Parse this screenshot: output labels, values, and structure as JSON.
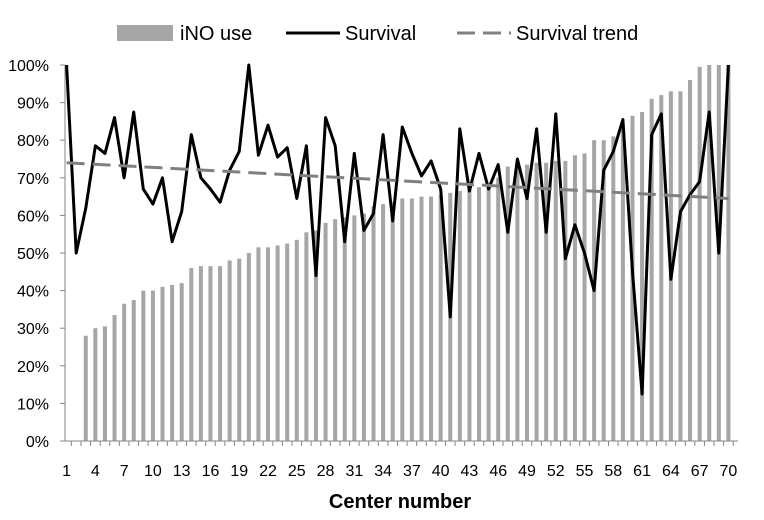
{
  "chart_data": {
    "type": "bar",
    "xlabel": "Center number",
    "ylabel": "",
    "ylim": [
      0,
      1
    ],
    "yticks": [
      "0%",
      "10%",
      "20%",
      "30%",
      "40%",
      "50%",
      "60%",
      "70%",
      "80%",
      "90%",
      "100%"
    ],
    "xtick_labels": [
      "1",
      "4",
      "7",
      "10",
      "13",
      "16",
      "19",
      "22",
      "25",
      "28",
      "31",
      "34",
      "37",
      "40",
      "43",
      "46",
      "49",
      "52",
      "55",
      "58",
      "61",
      "64",
      "67",
      "70"
    ],
    "categories": [
      1,
      2,
      3,
      4,
      5,
      6,
      7,
      8,
      9,
      10,
      11,
      12,
      13,
      14,
      15,
      16,
      17,
      18,
      19,
      20,
      21,
      22,
      23,
      24,
      25,
      26,
      27,
      28,
      29,
      30,
      31,
      32,
      33,
      34,
      35,
      36,
      37,
      38,
      39,
      40,
      41,
      42,
      43,
      44,
      45,
      46,
      47,
      48,
      49,
      50,
      51,
      52,
      53,
      54,
      55,
      56,
      57,
      58,
      59,
      60,
      61,
      62,
      63,
      64,
      65,
      66,
      67,
      68,
      69,
      70
    ],
    "legend": {
      "position": "top",
      "items": [
        "iNO use",
        "Survival",
        "Survival trend"
      ]
    },
    "series": [
      {
        "name": "iNO use",
        "type": "bar",
        "color": "#a6a6a6",
        "values": [
          0,
          0,
          0.28,
          0.3,
          0.305,
          0.335,
          0.365,
          0.375,
          0.4,
          0.4,
          0.41,
          0.415,
          0.42,
          0.46,
          0.465,
          0.465,
          0.465,
          0.48,
          0.485,
          0.5,
          0.515,
          0.515,
          0.52,
          0.525,
          0.535,
          0.555,
          0.56,
          0.58,
          0.59,
          0.595,
          0.6,
          0.605,
          0.625,
          0.63,
          0.635,
          0.645,
          0.645,
          0.65,
          0.65,
          0.655,
          0.66,
          0.665,
          0.67,
          0.675,
          0.68,
          0.7,
          0.73,
          0.735,
          0.735,
          0.74,
          0.74,
          0.745,
          0.745,
          0.76,
          0.765,
          0.8,
          0.8,
          0.81,
          0.83,
          0.865,
          0.875,
          0.91,
          0.92,
          0.93,
          0.93,
          0.96,
          0.995,
          1.0,
          1.0,
          1.0
        ]
      },
      {
        "name": "Survival",
        "type": "line",
        "color": "#000000",
        "values": [
          1.0,
          0.5,
          0.62,
          0.785,
          0.765,
          0.86,
          0.7,
          0.875,
          0.67,
          0.63,
          0.7,
          0.53,
          0.61,
          0.815,
          0.7,
          0.67,
          0.635,
          0.72,
          0.77,
          1.0,
          0.76,
          0.84,
          0.755,
          0.78,
          0.645,
          0.785,
          0.44,
          0.86,
          0.785,
          0.53,
          0.765,
          0.56,
          0.605,
          0.815,
          0.585,
          0.835,
          0.765,
          0.705,
          0.745,
          0.67,
          0.33,
          0.83,
          0.665,
          0.765,
          0.67,
          0.735,
          0.555,
          0.75,
          0.645,
          0.83,
          0.555,
          0.87,
          0.485,
          0.575,
          0.5,
          0.4,
          0.72,
          0.77,
          0.855,
          0.45,
          0.125,
          0.815,
          0.87,
          0.43,
          0.61,
          0.655,
          0.69,
          0.875,
          0.5,
          1.0
        ]
      },
      {
        "name": "Survival trend",
        "type": "line",
        "style": "dashed",
        "color": "#808080",
        "values": [
          0.74,
          0.645
        ],
        "x": [
          1,
          70
        ]
      }
    ]
  }
}
